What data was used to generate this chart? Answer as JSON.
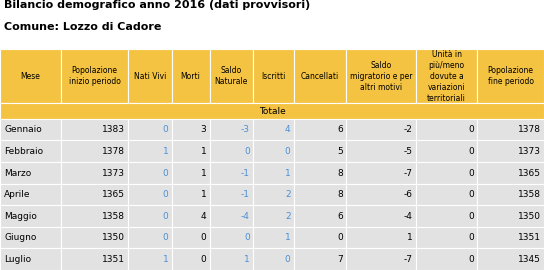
{
  "title_line1": "Bilancio demografico anno 2016 (dati provvisori)",
  "title_line2": "Comune: Lozzo di Cadore",
  "header_bg": "#F5C342",
  "totale_bg": "#F5C342",
  "row_bg": "#E2E2E2",
  "col_headers": [
    "Mese",
    "Popolazione\ninizio periodo",
    "Nati Vivi",
    "Morti",
    "Saldo\nNaturale",
    "Iscritti",
    "Cancellati",
    "Saldo\nmigratorio e per\naltri motivi",
    "Unità in\npiù/meno\ndovute a\nvariazioni\nterritoriali",
    "Popolazione\nfine periodo"
  ],
  "totale_label": "Totale",
  "rows": [
    [
      "Gennaio",
      1383,
      0,
      3,
      -3,
      4,
      6,
      -2,
      0,
      1378
    ],
    [
      "Febbraio",
      1378,
      1,
      1,
      0,
      0,
      5,
      -5,
      0,
      1373
    ],
    [
      "Marzo",
      1373,
      0,
      1,
      -1,
      1,
      8,
      -7,
      0,
      1365
    ],
    [
      "Aprile",
      1365,
      0,
      1,
      -1,
      2,
      8,
      -6,
      0,
      1358
    ],
    [
      "Maggio",
      1358,
      0,
      4,
      -4,
      2,
      6,
      -4,
      0,
      1350
    ],
    [
      "Giugno",
      1350,
      0,
      0,
      0,
      1,
      0,
      1,
      0,
      1351
    ],
    [
      "Luglio",
      1351,
      1,
      0,
      1,
      0,
      7,
      -7,
      0,
      1345
    ]
  ],
  "col_widths_rel": [
    1.05,
    1.15,
    0.75,
    0.65,
    0.75,
    0.7,
    0.9,
    1.2,
    1.05,
    1.15
  ],
  "blue_cols": [
    2,
    4,
    5
  ],
  "blue_color": "#4A90D9",
  "black_color": "#000000",
  "title_fontsize": 8.0,
  "header_fontsize": 5.5,
  "data_fontsize": 6.5,
  "totale_fontsize": 6.5
}
